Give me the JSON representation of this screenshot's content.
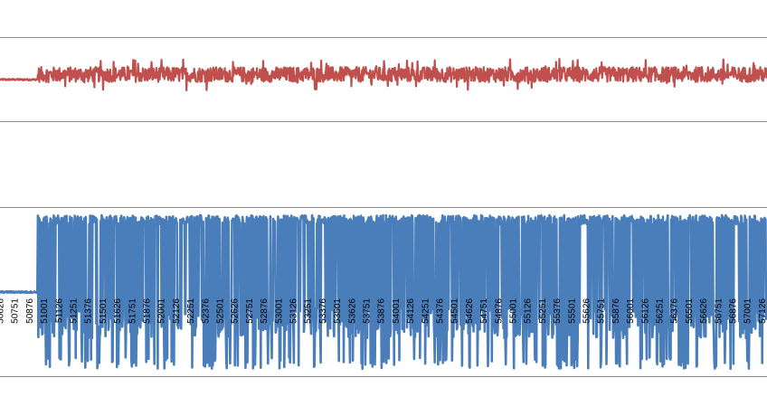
{
  "chart_data": {
    "type": "line",
    "title": "",
    "xlabel": "",
    "ylabel": "",
    "grid": true,
    "legend": "none",
    "x_tick_labels": [
      "50626",
      "50751",
      "50876",
      "51001",
      "51126",
      "51251",
      "51376",
      "51501",
      "51626",
      "51751",
      "51876",
      "52001",
      "52126",
      "52251",
      "52376",
      "52501",
      "52626",
      "52751",
      "52876",
      "53001",
      "53126",
      "53251",
      "53376",
      "53501",
      "53626",
      "53751",
      "53876",
      "54001",
      "54126",
      "54251",
      "54376",
      "54501",
      "54626",
      "54751",
      "54876",
      "55001",
      "55126",
      "55251",
      "55376",
      "55501",
      "55626",
      "55751",
      "55876",
      "56001",
      "56126",
      "56251",
      "56376",
      "56501",
      "56626",
      "56751",
      "56876",
      "57001",
      "57126"
    ],
    "x_range": [
      50550,
      57180
    ],
    "series": [
      {
        "color": "#c0504d",
        "panel": "top",
        "baseline_until_x": 50876,
        "baseline_value": 0.0,
        "baseline_jitter": 0.02,
        "active_center": 0.12,
        "active_amplitude_typical": 0.18,
        "active_amplitude_max": 0.38,
        "ylim": [
          -1,
          1
        ]
      },
      {
        "color": "#4a7ebb",
        "panel": "bottom",
        "baseline_until_x": 50876,
        "baseline_value": 0.0,
        "baseline_jitter": 0.01,
        "active_min": -1.0,
        "active_max": 1.0,
        "ylim": [
          -1.1,
          1.1
        ]
      }
    ]
  }
}
